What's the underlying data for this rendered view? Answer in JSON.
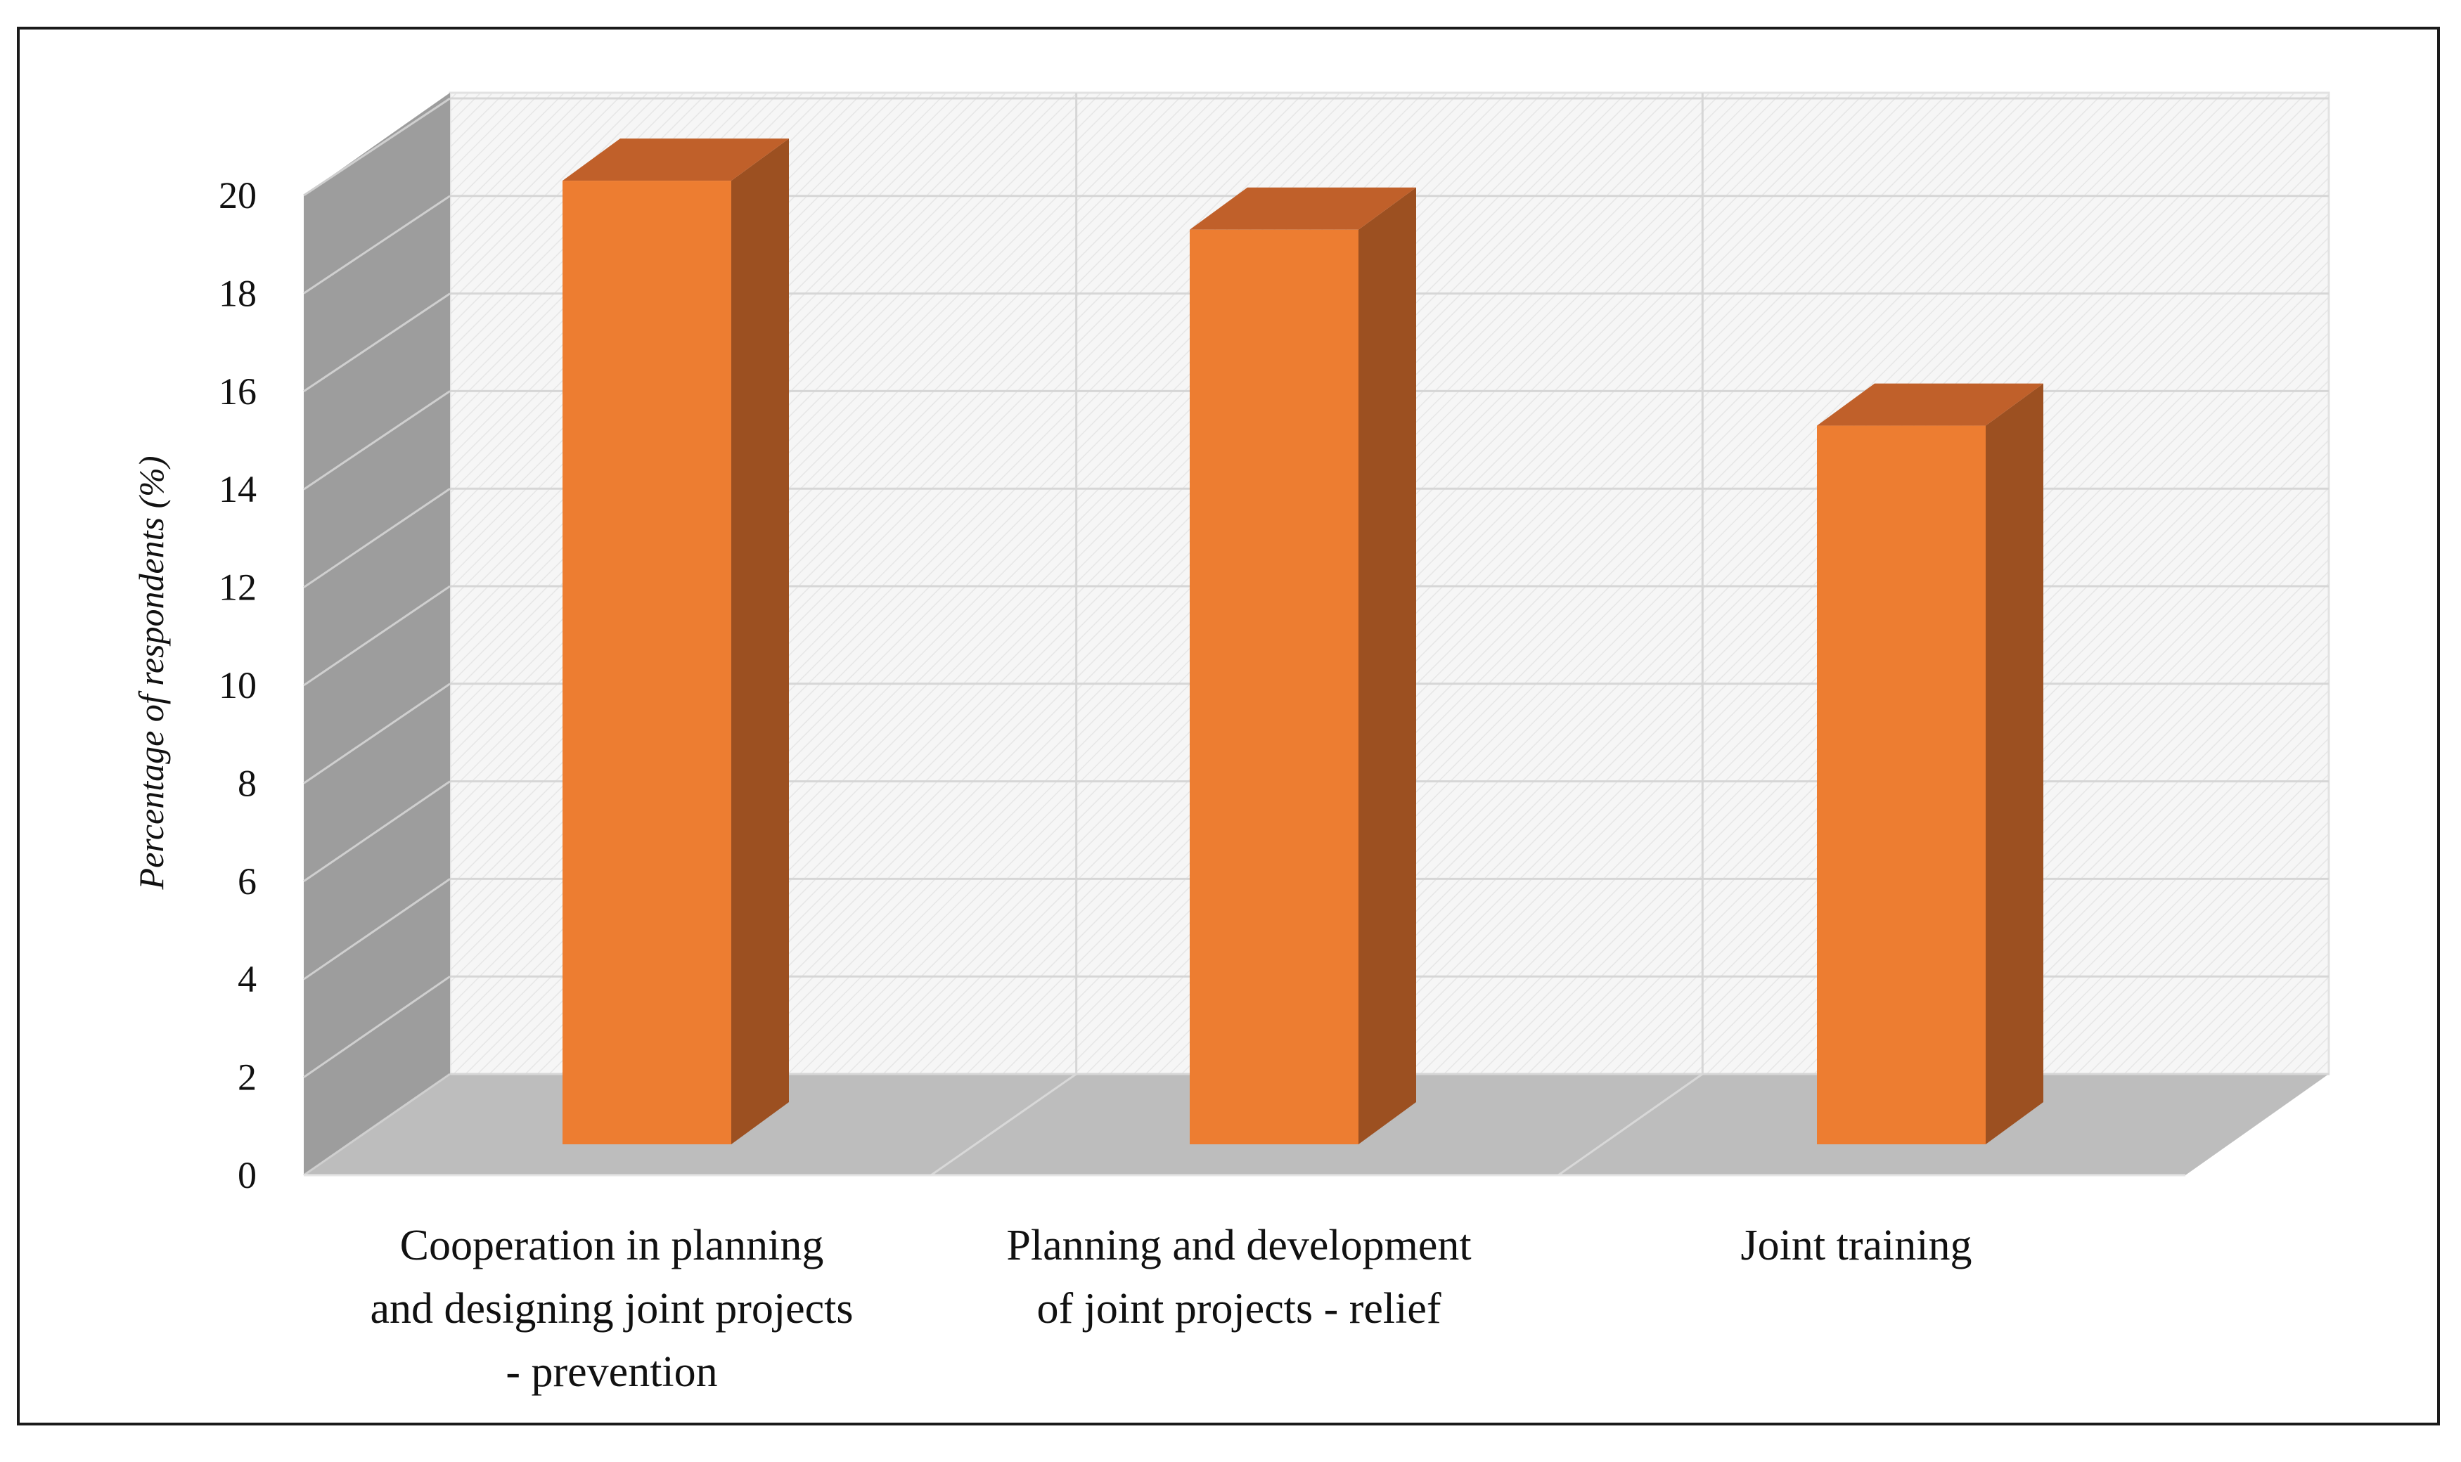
{
  "chart_data": {
    "type": "bar",
    "style": "3d-column",
    "categories": [
      [
        "Cooperation in planning",
        "and designing joint projects",
        "- prevention"
      ],
      [
        "Planning and development",
        "of joint projects - relief"
      ],
      [
        "Joint training"
      ]
    ],
    "values": [
      20.3,
      19.3,
      15.3
    ],
    "title": "",
    "xlabel": "",
    "ylabel": "Percentage  of respondents (%)",
    "ylim": [
      0,
      20
    ],
    "yticks": [
      0,
      2,
      4,
      6,
      8,
      10,
      12,
      14,
      16,
      18,
      20
    ],
    "grid": true
  },
  "colors": {
    "bar_front": "#ed7d31",
    "bar_side": "#9c5021",
    "bar_top": "#c0602a",
    "floor": "#bdbdbd",
    "side_wall": "#9d9d9d",
    "back_wall": "#f4f4f4",
    "grid": "#d6d6d6"
  }
}
